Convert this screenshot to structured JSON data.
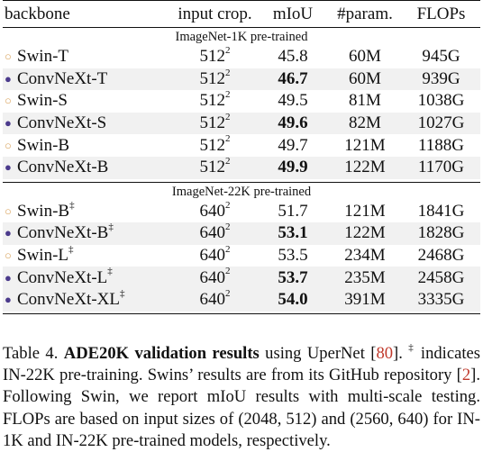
{
  "table": {
    "headers": {
      "backbone": "backbone",
      "input_crop": "input crop.",
      "miou": "mIoU",
      "params": "#param.",
      "flops": "FLOPs"
    },
    "groups": [
      {
        "label": "ImageNet-1K pre-trained",
        "rows": [
          {
            "marker": "○",
            "backbone": "Swin-T",
            "sup": "",
            "crop_base": "512",
            "crop_exp": "2",
            "miou": "45.8",
            "miou_bold": false,
            "params": "60M",
            "flops": "945G",
            "shaded": false
          },
          {
            "marker": "●",
            "backbone": "ConvNeXt-T",
            "sup": "",
            "crop_base": "512",
            "crop_exp": "2",
            "miou": "46.7",
            "miou_bold": true,
            "params": "60M",
            "flops": "939G",
            "shaded": true
          },
          {
            "marker": "○",
            "backbone": "Swin-S",
            "sup": "",
            "crop_base": "512",
            "crop_exp": "2",
            "miou": "49.5",
            "miou_bold": false,
            "params": "81M",
            "flops": "1038G",
            "shaded": false
          },
          {
            "marker": "●",
            "backbone": "ConvNeXt-S",
            "sup": "",
            "crop_base": "512",
            "crop_exp": "2",
            "miou": "49.6",
            "miou_bold": true,
            "params": "82M",
            "flops": "1027G",
            "shaded": true
          },
          {
            "marker": "○",
            "backbone": "Swin-B",
            "sup": "",
            "crop_base": "512",
            "crop_exp": "2",
            "miou": "49.7",
            "miou_bold": false,
            "params": "121M",
            "flops": "1188G",
            "shaded": false
          },
          {
            "marker": "●",
            "backbone": "ConvNeXt-B",
            "sup": "",
            "crop_base": "512",
            "crop_exp": "2",
            "miou": "49.9",
            "miou_bold": true,
            "params": "122M",
            "flops": "1170G",
            "shaded": true
          }
        ]
      },
      {
        "label": "ImageNet-22K pre-trained",
        "rows": [
          {
            "marker": "○",
            "backbone": "Swin-B",
            "sup": "‡",
            "crop_base": "640",
            "crop_exp": "2",
            "miou": "51.7",
            "miou_bold": false,
            "params": "121M",
            "flops": "1841G",
            "shaded": false
          },
          {
            "marker": "●",
            "backbone": "ConvNeXt-B",
            "sup": "‡",
            "crop_base": "640",
            "crop_exp": "2",
            "miou": "53.1",
            "miou_bold": true,
            "params": "122M",
            "flops": "1828G",
            "shaded": true
          },
          {
            "marker": "○",
            "backbone": "Swin-L",
            "sup": "‡",
            "crop_base": "640",
            "crop_exp": "2",
            "miou": "53.5",
            "miou_bold": false,
            "params": "234M",
            "flops": "2468G",
            "shaded": false
          },
          {
            "marker": "●",
            "backbone": "ConvNeXt-L",
            "sup": "‡",
            "crop_base": "640",
            "crop_exp": "2",
            "miou": "53.7",
            "miou_bold": true,
            "params": "235M",
            "flops": "2458G",
            "shaded": true
          },
          {
            "marker": "●",
            "backbone": "ConvNeXt-XL",
            "sup": "‡",
            "crop_base": "640",
            "crop_exp": "2",
            "miou": "54.0",
            "miou_bold": true,
            "params": "391M",
            "flops": "3335G",
            "shaded": true
          }
        ]
      }
    ]
  },
  "caption": {
    "prefix": "Table 4. ",
    "title": "ADE20K validation results",
    "text_1": " using UperNet [",
    "cite_1": "80",
    "text_2": "]. ",
    "dagger": "‡",
    "text_3": " indicates IN-22K pre-training. Swins’ results are from its GitHub repository [",
    "cite_2": "2",
    "text_4": "]. Following Swin, we report mIoU results with multi-scale testing. FLOPs are based on input sizes of (2048, 512) and (2560, 640) for IN-1K and IN-22K pre-trained models, respectively."
  },
  "colors": {
    "swin_marker": "#d9a25a",
    "convnext_marker": "#4b3a8c",
    "shade": "#f1f1f1",
    "citation": "#c0392b"
  }
}
